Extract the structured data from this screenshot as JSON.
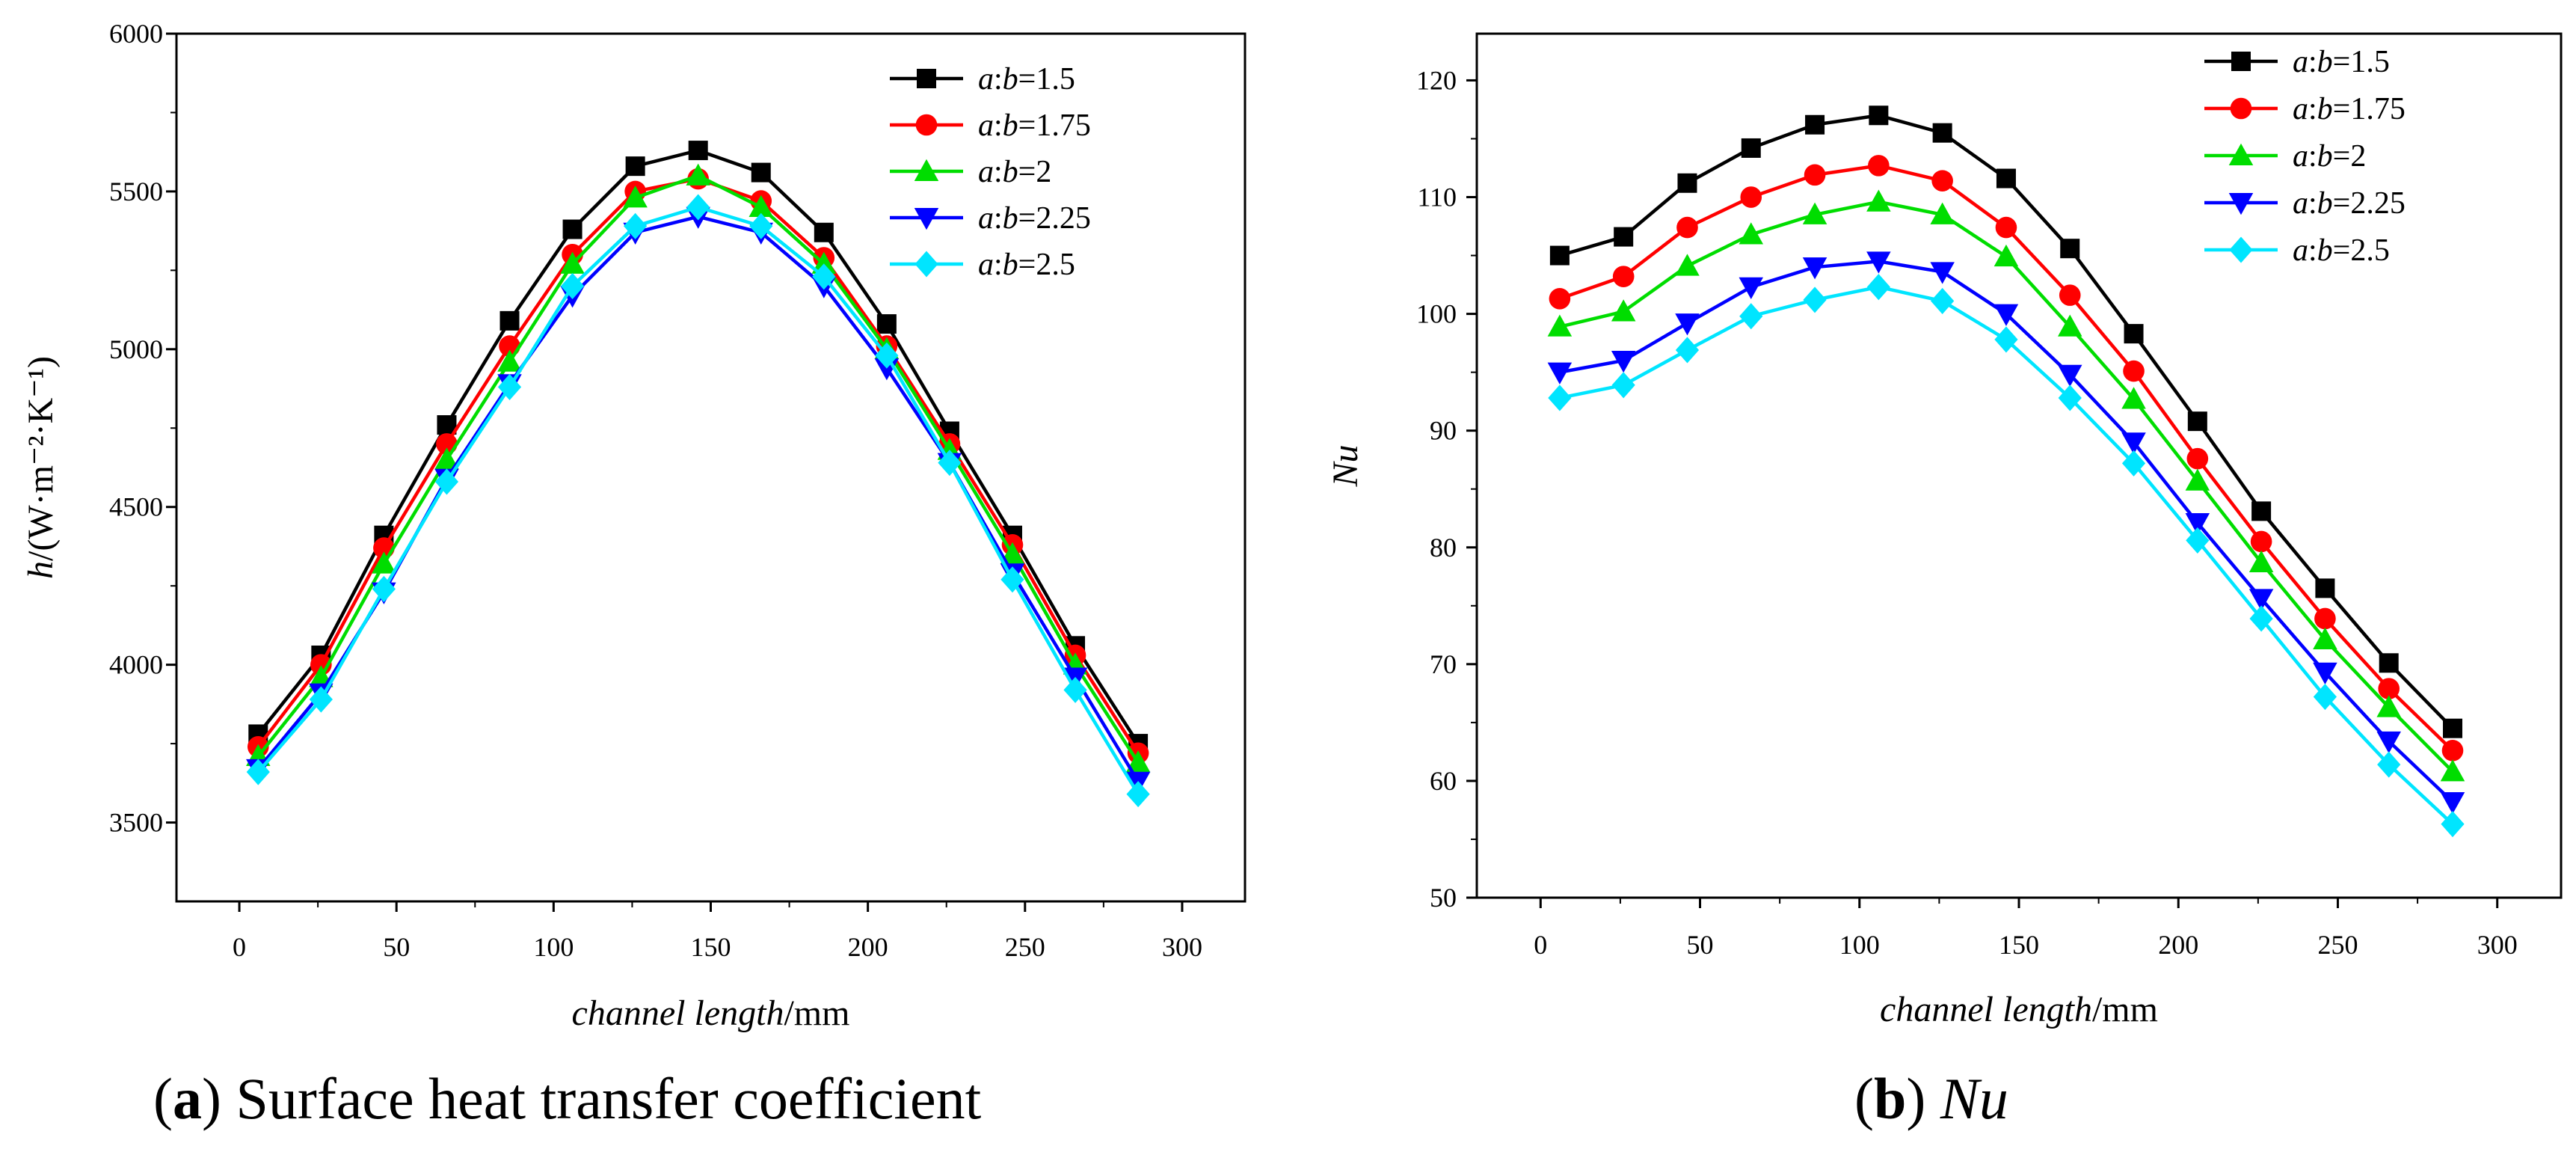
{
  "chart_data": [
    {
      "type": "line",
      "panel_letter": "a",
      "panel_caption": "Surface heat transfer coefficient",
      "xlabel": "channel length",
      "xunit": "/mm",
      "ylabel": "h/(W·m⁻²·K⁻¹)",
      "xlim": [
        -20,
        320
      ],
      "ylim": [
        3250,
        6000
      ],
      "xticks": [
        0,
        50,
        100,
        150,
        200,
        250,
        300
      ],
      "yticks": [
        3500,
        4000,
        4500,
        5000,
        5500,
        6000
      ],
      "grid": false,
      "legend_position": "top-right",
      "x": [
        6,
        26,
        46,
        66,
        86,
        106,
        126,
        146,
        166,
        186,
        206,
        226,
        246,
        266,
        286
      ],
      "series": [
        {
          "name_prefix": "a",
          "name_sep": ":",
          "name_var": "b",
          "name_value": "=1.5",
          "color": "#000000",
          "marker": "square",
          "values": [
            3780,
            4030,
            4410,
            4760,
            5090,
            5380,
            5580,
            5630,
            5560,
            5370,
            5080,
            4740,
            4410,
            4060,
            3750
          ]
        },
        {
          "name_prefix": "a",
          "name_sep": ":",
          "name_var": "b",
          "name_value": "=1.75",
          "color": "#ff0000",
          "marker": "circle",
          "values": [
            3740,
            4000,
            4370,
            4700,
            5010,
            5300,
            5500,
            5540,
            5470,
            5290,
            5010,
            4700,
            4380,
            4030,
            3720
          ]
        },
        {
          "name_prefix": "a",
          "name_sep": ":",
          "name_var": "b",
          "name_value": "=2",
          "color": "#00dd00",
          "marker": "triangle-up",
          "values": [
            3710,
            3960,
            4320,
            4650,
            4960,
            5270,
            5480,
            5550,
            5450,
            5270,
            5000,
            4680,
            4350,
            4000,
            3690
          ]
        },
        {
          "name_prefix": "a",
          "name_sep": ":",
          "name_var": "b",
          "name_value": "=2.25",
          "color": "#0000ff",
          "marker": "triangle-down",
          "values": [
            3670,
            3910,
            4230,
            4590,
            4890,
            5170,
            5370,
            5420,
            5370,
            5200,
            4940,
            4640,
            4290,
            3960,
            3630
          ]
        },
        {
          "name_prefix": "a",
          "name_sep": ":",
          "name_var": "b",
          "name_value": "=2.5",
          "color": "#00e5ff",
          "marker": "diamond",
          "values": [
            3660,
            3890,
            4240,
            4580,
            4880,
            5200,
            5390,
            5450,
            5390,
            5230,
            4980,
            4640,
            4270,
            3920,
            3590
          ]
        }
      ]
    },
    {
      "type": "line",
      "panel_letter": "b",
      "panel_caption": "Nu",
      "xlabel": "channel length",
      "xunit": "/mm",
      "ylabel": "Nu",
      "xlim": [
        -20,
        320
      ],
      "ylim": [
        50,
        124
      ],
      "xticks": [
        0,
        50,
        100,
        150,
        200,
        250,
        300
      ],
      "yticks": [
        50,
        60,
        70,
        80,
        90,
        100,
        110,
        120
      ],
      "grid": false,
      "legend_position": "top-right",
      "x": [
        6,
        26,
        46,
        66,
        86,
        106,
        126,
        146,
        166,
        186,
        206,
        226,
        246,
        266,
        286
      ],
      "series": [
        {
          "name_prefix": "a",
          "name_sep": ":",
          "name_var": "b",
          "name_value": "=1.5",
          "color": "#000000",
          "marker": "square",
          "values": [
            105.0,
            106.6,
            111.2,
            114.2,
            116.2,
            117.0,
            115.5,
            111.6,
            105.6,
            98.3,
            90.8,
            83.1,
            76.5,
            70.1,
            64.5
          ]
        },
        {
          "name_prefix": "a",
          "name_sep": ":",
          "name_var": "b",
          "name_value": "=1.75",
          "color": "#ff0000",
          "marker": "circle",
          "values": [
            101.3,
            103.2,
            107.4,
            110.0,
            111.9,
            112.7,
            111.4,
            107.4,
            101.6,
            95.1,
            87.6,
            80.5,
            73.9,
            67.9,
            62.6
          ]
        },
        {
          "name_prefix": "a",
          "name_sep": ":",
          "name_var": "b",
          "name_value": "=2",
          "color": "#00dd00",
          "marker": "triangle-up",
          "values": [
            98.9,
            100.2,
            104.1,
            106.8,
            108.5,
            109.6,
            108.5,
            104.9,
            98.9,
            92.7,
            85.7,
            78.7,
            72.1,
            66.3,
            60.8
          ]
        },
        {
          "name_prefix": "a",
          "name_sep": ":",
          "name_var": "b",
          "name_value": "=2.25",
          "color": "#0000ff",
          "marker": "triangle-down",
          "values": [
            95.0,
            96.0,
            99.2,
            102.3,
            104.0,
            104.5,
            103.6,
            100.0,
            94.8,
            89.0,
            82.1,
            75.6,
            69.3,
            63.4,
            58.2
          ]
        },
        {
          "name_prefix": "a",
          "name_sep": ":",
          "name_var": "b",
          "name_value": "=2.5",
          "color": "#00e5ff",
          "marker": "diamond",
          "values": [
            92.8,
            93.9,
            96.9,
            99.8,
            101.2,
            102.3,
            101.1,
            97.8,
            92.8,
            87.2,
            80.6,
            73.9,
            67.2,
            61.4,
            56.3
          ]
        }
      ]
    }
  ]
}
